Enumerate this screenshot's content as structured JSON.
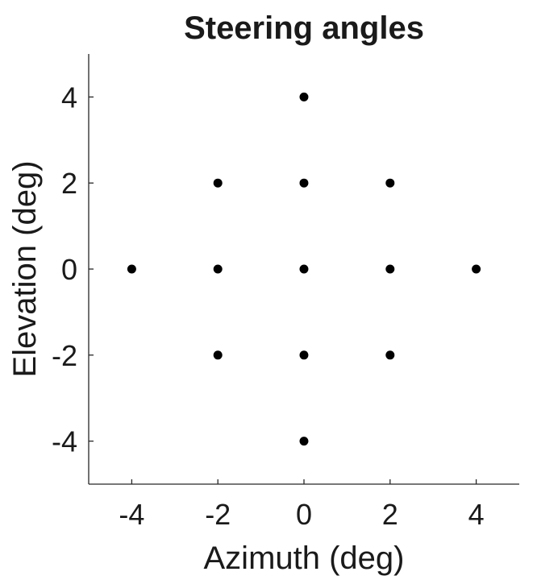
{
  "chart_data": {
    "type": "scatter",
    "title": "Steering angles",
    "xlabel": "Azimuth (deg)",
    "ylabel": "Elevation (deg)",
    "xlim": [
      -5,
      5
    ],
    "ylim": [
      -5,
      5
    ],
    "xticks": [
      -4,
      -2,
      0,
      2,
      4
    ],
    "yticks": [
      -4,
      -2,
      0,
      2,
      4
    ],
    "xtick_labels": [
      "-4",
      "-2",
      "0",
      "2",
      "4"
    ],
    "ytick_labels": [
      "-4",
      "-2",
      "0",
      "2",
      "4"
    ],
    "grid": false,
    "marker_color": "#000000",
    "series": [
      {
        "points": [
          {
            "x": 0,
            "y": 4
          },
          {
            "x": -2,
            "y": 2
          },
          {
            "x": 0,
            "y": 2
          },
          {
            "x": 2,
            "y": 2
          },
          {
            "x": -4,
            "y": 0
          },
          {
            "x": -2,
            "y": 0
          },
          {
            "x": 0,
            "y": 0
          },
          {
            "x": 2,
            "y": 0
          },
          {
            "x": 4,
            "y": 0
          },
          {
            "x": -2,
            "y": -2
          },
          {
            "x": 0,
            "y": -2
          },
          {
            "x": 2,
            "y": -2
          },
          {
            "x": 0,
            "y": -4
          }
        ]
      }
    ]
  }
}
